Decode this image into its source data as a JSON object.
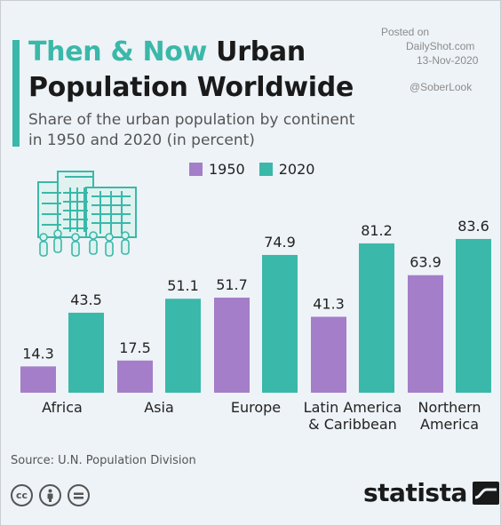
{
  "header": {
    "title_highlight": "Then & Now",
    "title_rest_line1": "Urban",
    "title_line2": "Population Worldwide",
    "subtitle_line1": "Share of the urban population by continent",
    "subtitle_line2": "in 1950 and 2020 (in percent)"
  },
  "watermark": {
    "posted_on": "Posted on",
    "site": "DailyShot.com",
    "date": "13-Nov-2020",
    "handle": "@SoberLook"
  },
  "colors": {
    "series_1950": "#a47ec9",
    "series_2020": "#3ab8a9",
    "accent": "#3ab8a9"
  },
  "chart_data": {
    "type": "bar",
    "categories": [
      [
        "Africa"
      ],
      [
        "Asia"
      ],
      [
        "Europe"
      ],
      [
        "Latin America",
        "& Caribbean"
      ],
      [
        "Northern",
        "America"
      ]
    ],
    "series": [
      {
        "name": "1950",
        "values": [
          14.3,
          17.5,
          51.7,
          41.3,
          63.9
        ]
      },
      {
        "name": "2020",
        "values": [
          43.5,
          51.1,
          74.9,
          81.2,
          83.6
        ]
      }
    ],
    "ylim": [
      0,
      100
    ],
    "legend_position": "top",
    "grid": false
  },
  "footer": {
    "source": "Source: U.N. Population Division",
    "brand": "statista",
    "license_icons": [
      "cc-icon",
      "attribution-icon",
      "no-derivatives-icon"
    ]
  }
}
